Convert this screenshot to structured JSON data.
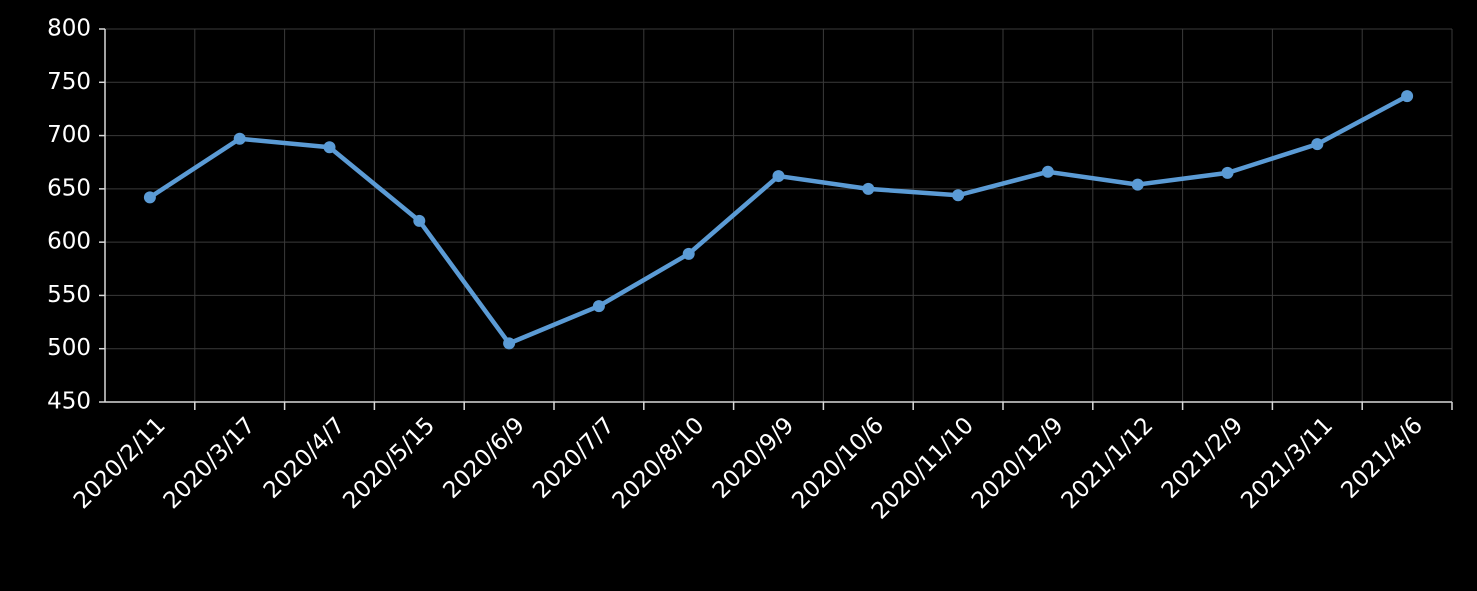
{
  "chart_data": {
    "type": "line",
    "categories": [
      "2020/2/11",
      "2020/3/17",
      "2020/4/7",
      "2020/5/15",
      "2020/6/9",
      "2020/7/7",
      "2020/8/10",
      "2020/9/9",
      "2020/10/6",
      "2020/11/10",
      "2020/12/9",
      "2021/1/12",
      "2021/2/9",
      "2021/3/11",
      "2021/4/6"
    ],
    "values": [
      642,
      697,
      689,
      620,
      505,
      540,
      589,
      662,
      650,
      644,
      666,
      654,
      665,
      692,
      737
    ],
    "color": "#5b9bd5",
    "ylim": [
      450,
      800
    ],
    "yticks": [
      450,
      500,
      550,
      600,
      650,
      700,
      750,
      800
    ],
    "grid": true
  }
}
